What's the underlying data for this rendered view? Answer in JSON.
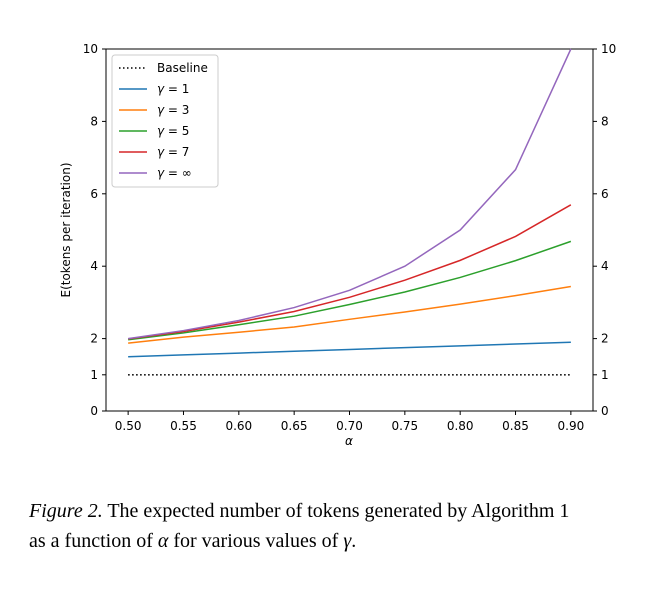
{
  "chart_data": {
    "type": "line",
    "xlabel": "α",
    "ylabel": "E(tokens per iteration)",
    "xlim": [
      0.48,
      0.92
    ],
    "ylim": [
      0,
      10
    ],
    "x_ticks": [
      "0.50",
      "0.55",
      "0.60",
      "0.65",
      "0.70",
      "0.75",
      "0.80",
      "0.85",
      "0.90"
    ],
    "y_ticks": [
      "0",
      "1",
      "2",
      "4",
      "6",
      "8",
      "10"
    ],
    "y_ticks_right": [
      "0",
      "1",
      "2",
      "4",
      "6",
      "8",
      "10"
    ],
    "legend_position": "top-left",
    "grid": false,
    "x": [
      0.5,
      0.55,
      0.6,
      0.65,
      0.7,
      0.75,
      0.8,
      0.85,
      0.9
    ],
    "series": [
      {
        "name": "Baseline",
        "label_prefix": "",
        "label_value": "",
        "style": "dotted",
        "color": "#000000",
        "values": [
          1,
          1,
          1,
          1,
          1,
          1,
          1,
          1,
          1
        ]
      },
      {
        "name": "γ = 1",
        "label_prefix": "γ = ",
        "label_value": "1",
        "style": "solid",
        "color": "#1f77b4",
        "values": [
          1.5,
          1.55,
          1.6,
          1.65,
          1.7,
          1.75,
          1.8,
          1.85,
          1.9
        ]
      },
      {
        "name": "γ = 3",
        "label_prefix": "γ = ",
        "label_value": "3",
        "style": "solid",
        "color": "#ff7f0e",
        "values": [
          1.875,
          2.0399,
          2.176,
          2.3214,
          2.533,
          2.7344,
          2.952,
          3.1874,
          3.439
        ]
      },
      {
        "name": "γ = 5",
        "label_prefix": "γ = ",
        "label_value": "5",
        "style": "solid",
        "color": "#2ca02c",
        "values": [
          1.9688,
          2.1579,
          2.3834,
          2.6193,
          2.9412,
          3.2881,
          3.6893,
          4.1535,
          4.6856
        ]
      },
      {
        "name": "γ = 7",
        "label_prefix": "γ = ",
        "label_value": "7",
        "style": "solid",
        "color": "#d62728",
        "values": [
          1.9922,
          2.196,
          2.4557,
          2.7478,
          3.1412,
          3.6129,
          4.1611,
          4.8224,
          5.6953
        ]
      },
      {
        "name": "γ = ∞",
        "label_prefix": "γ = ",
        "label_value": "∞",
        "style": "solid",
        "color": "#9467bd",
        "values": [
          2.0,
          2.2222,
          2.5,
          2.8571,
          3.3333,
          4.0,
          5.0,
          6.6667,
          10.0
        ]
      }
    ]
  },
  "caption": {
    "figure_label": "Figure 2.",
    "text_1": " The expected number of tokens generated by Algorithm 1",
    "text_2": "as a function of ",
    "alpha_symbol": "α",
    "text_3": " for various values of ",
    "gamma_symbol": "γ",
    "text_4": "."
  }
}
